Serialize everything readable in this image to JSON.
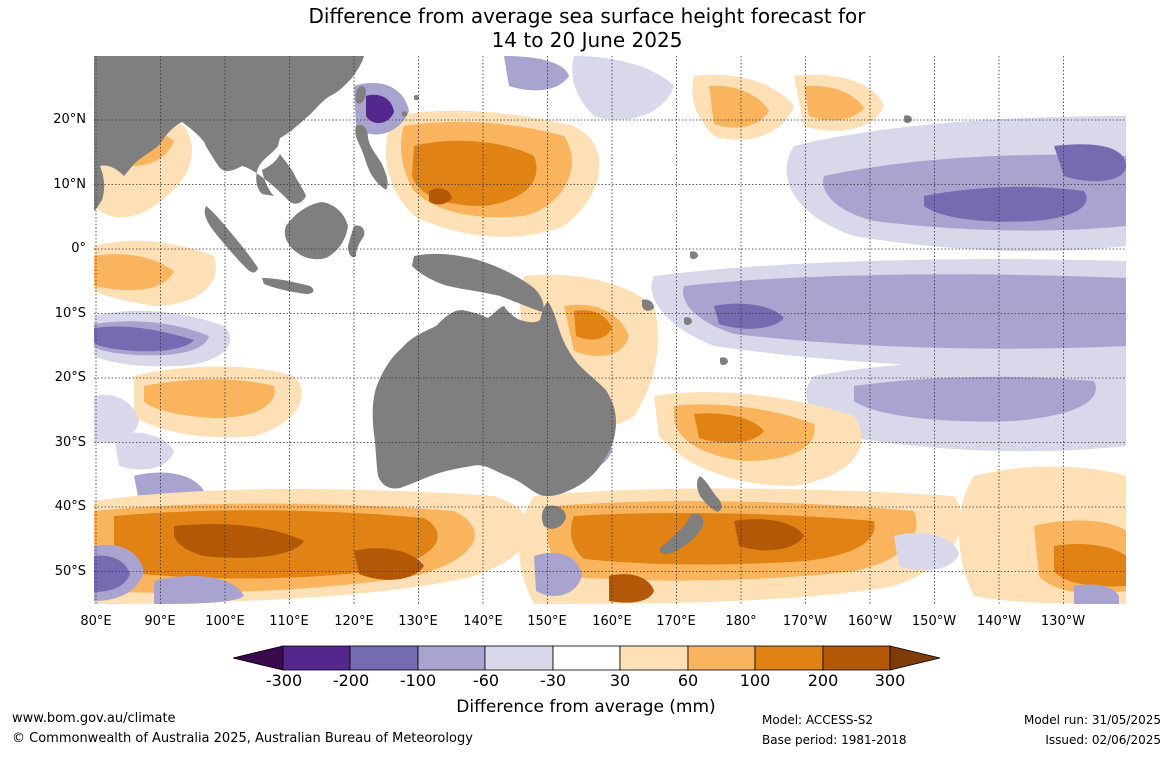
{
  "title": {
    "line1": "Difference from average sea surface height forecast for",
    "line2": "14 to 20 June 2025"
  },
  "map": {
    "lat_labels": [
      "20°N",
      "10°N",
      "0°",
      "10°S",
      "20°S",
      "30°S",
      "40°S",
      "50°S"
    ],
    "lon_labels": [
      "80°E",
      "90°E",
      "100°E",
      "110°E",
      "120°E",
      "130°E",
      "140°E",
      "150°E",
      "160°E",
      "170°E",
      "180°",
      "170°W",
      "160°W",
      "150°W",
      "140°W",
      "130°W"
    ],
    "colors": {
      "land": "#7f7f7f",
      "ocean_neutral": "#ffffff",
      "gridline": "#333333"
    }
  },
  "colorbar": {
    "title": "Difference from average (mm)",
    "tick_labels": [
      "-300",
      "-200",
      "-100",
      "-60",
      "-30",
      "30",
      "60",
      "100",
      "200",
      "300"
    ],
    "colors": {
      "below_min": "#3b0a4c",
      "n300_n200": "#54278f",
      "n200_n100": "#756bb1",
      "n100_n60": "#a9a4cf",
      "n60_n30": "#d9d8ea",
      "n30_30": "#ffffff",
      "p30_60": "#fee0b6",
      "p60_100": "#fbb45e",
      "p100_200": "#e08214",
      "p200_300": "#b35806",
      "above_max": "#7f3b08"
    }
  },
  "footer": {
    "website": "www.bom.gov.au/climate",
    "copyright": "© Commonwealth of Australia 2025, Australian Bureau of Meteorology",
    "model": "Model: ACCESS-S2",
    "base_period": "Base period: 1981-2018",
    "model_run": "Model run: 31/05/2025",
    "issued": "Issued: 02/06/2025"
  }
}
